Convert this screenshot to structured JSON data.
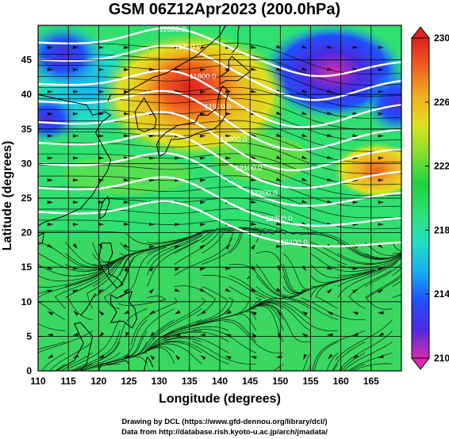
{
  "title": "GSM 06Z12Apr2023 (200.0hPa)",
  "xlabel": "Longitude (degrees)",
  "ylabel": "Latitude (degrees)",
  "credits": [
    "Drawing by DCL (https://www.gfd-dennou.org/library/dcl/)",
    "Data from http://database.rish.kyoto-u.ac.jp/arch/jmadata/"
  ],
  "x_ticks": [
    "110",
    "115",
    "120",
    "125",
    "130",
    "135",
    "140",
    "145",
    "150",
    "155",
    "160",
    "165"
  ],
  "y_ticks": [
    "0",
    "5",
    "10",
    "15",
    "20",
    "25",
    "30",
    "35",
    "40",
    "45"
  ],
  "colorbar": {
    "min": 210,
    "max": 230,
    "ticks": [
      "210",
      "214",
      "218",
      "222",
      "226",
      "230"
    ],
    "colors": [
      "#d62bb0",
      "#4a2be0",
      "#2050ff",
      "#18b0f0",
      "#20e0c0",
      "#30e070",
      "#20d040",
      "#80e030",
      "#e0e020",
      "#f0b020",
      "#f06020",
      "#e02020"
    ]
  },
  "contours": {
    "labels": [
      "11600.0",
      "11700.0",
      "11800.0",
      "11900.0",
      "12000.0",
      "12100.0",
      "12200.0",
      "12300.0",
      "12400.0"
    ]
  },
  "chart_data": {
    "type": "heatmap",
    "title": "GSM 06Z12Apr2023 (200.0hPa)",
    "xlabel": "Longitude (degrees)",
    "ylabel": "Latitude (degrees)",
    "xlim": [
      110,
      170
    ],
    "ylim": [
      0,
      50
    ],
    "colorbar_range": [
      210,
      230
    ],
    "contour_values": [
      11600,
      11700,
      11800,
      11900,
      12000,
      12100,
      12200,
      12300,
      12400
    ],
    "overlay": "wind streamlines"
  }
}
